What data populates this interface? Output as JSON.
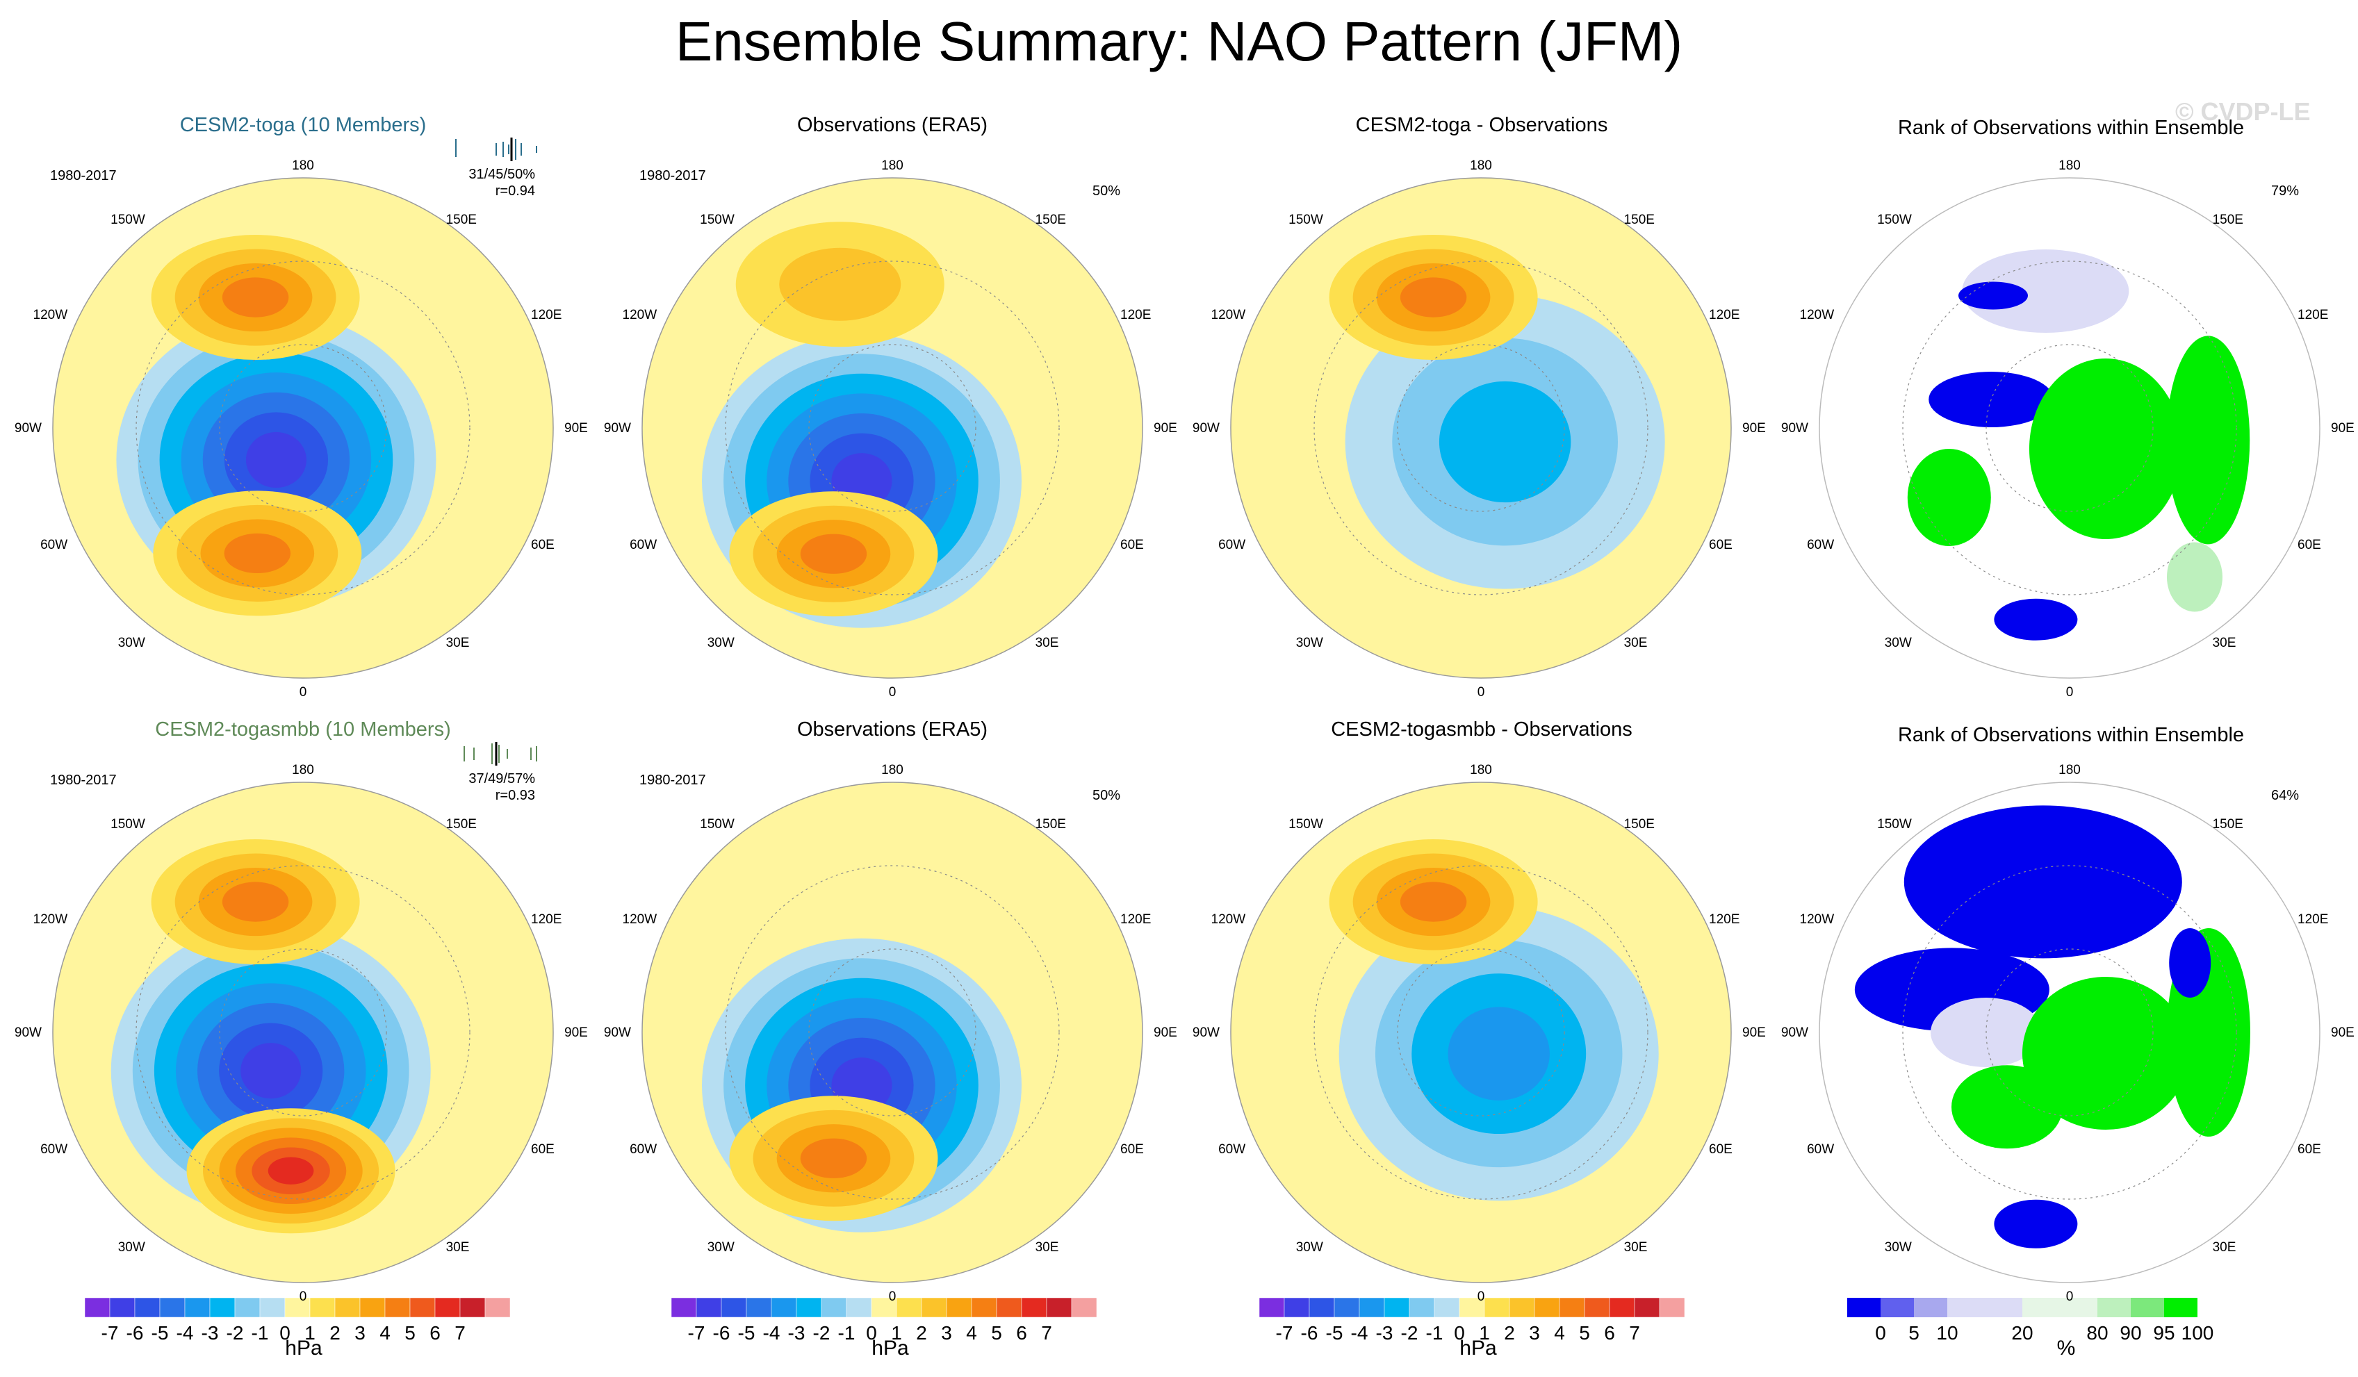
{
  "figure_title": "Ensemble Summary: NAO Pattern (JFM)",
  "watermark": "© CVDP-LE",
  "colors": {
    "model_title_1": "#2a6e8c",
    "model_title_2": "#5f8a58",
    "ice": [
      "#7b2ee0",
      "#3f3fe6",
      "#2d55e6",
      "#2a75e8",
      "#1a97ee",
      "#00b4f0",
      "#7fcaf0",
      "#b6def2"
    ],
    "fire": [
      "#fff59e",
      "#fde04e",
      "#fbc32a",
      "#f9a311",
      "#f57f13",
      "#ef5a1d",
      "#e42a20",
      "#c8202a",
      "#f4a0a0"
    ],
    "rank": [
      "#0000ee",
      "#6060ee",
      "#a8a8ee",
      "#dcdcf6",
      "#ffffff",
      "#e6f6e6",
      "#bdf0bd",
      "#7ce87c",
      "#00ee00"
    ]
  },
  "colorbar_hpa": {
    "labels": [
      "-7",
      "-6",
      "-5",
      "-4",
      "-3",
      "-2",
      "-1",
      "0",
      "1",
      "2",
      "3",
      "4",
      "5",
      "6",
      "7"
    ],
    "unit": "hPa"
  },
  "colorbar_rank": {
    "labels": [
      "0",
      "5",
      "10",
      "20",
      "80",
      "90",
      "95",
      "100"
    ],
    "unit": "%"
  },
  "longitude_labels": {
    "top": "180",
    "bottom": "0",
    "left_upper": "150W",
    "left_mid_upper": "120W",
    "left_mid": "90W",
    "left_mid_lower": "60W",
    "left_lower": "30W",
    "right_upper": "150E",
    "right_mid_upper": "120E",
    "right_mid": "90E",
    "right_mid_lower": "60E",
    "right_lower": "30E"
  },
  "chart_data": [
    {
      "type": "heatmap",
      "map": "polar stereographic, Northern Hemisphere",
      "title": "CESM2-toga (10 Members)",
      "period": "1980-2017",
      "stats": "31/45/50%",
      "pattern_corr": "r=0.94",
      "units": "hPa",
      "range": [
        -7,
        7
      ],
      "centers": [
        {
          "name": "Icelandic/Arctic low",
          "lat": 75,
          "lon": -40,
          "value": -6
        },
        {
          "name": "Atlantic subtropical high",
          "lat": 42,
          "lon": -20,
          "value": 3
        },
        {
          "name": "North Pacific high",
          "lat": 40,
          "lon": -160,
          "value": 3
        }
      ]
    },
    {
      "type": "heatmap",
      "map": "polar stereographic, Northern Hemisphere",
      "title": "Observations (ERA5)",
      "period": "1980-2017",
      "pct": "50%",
      "units": "hPa",
      "range": [
        -7,
        7
      ],
      "centers": [
        {
          "name": "Icelandic low",
          "lat": 68,
          "lon": -30,
          "value": -6
        },
        {
          "name": "Azores high",
          "lat": 40,
          "lon": -25,
          "value": 3
        },
        {
          "name": "North Pacific high",
          "lat": 35,
          "lon": -160,
          "value": 1
        }
      ]
    },
    {
      "type": "heatmap",
      "map": "polar stereographic, Northern Hemisphere",
      "title": "CESM2-toga - Observations",
      "units": "hPa",
      "range": [
        -7,
        7
      ],
      "centers": [
        {
          "name": "Arctic negative",
          "lat": 80,
          "lon": 60,
          "value": -2
        },
        {
          "name": "North Pacific positive",
          "lat": 40,
          "lon": -160,
          "value": 3
        }
      ]
    },
    {
      "type": "heatmap",
      "map": "polar stereographic, Northern Hemisphere",
      "title": "Rank of Observations within Ensemble",
      "pct": "79%",
      "units": "%",
      "classes": [
        0,
        5,
        10,
        20,
        80,
        90,
        95,
        100
      ]
    },
    {
      "type": "heatmap",
      "map": "polar stereographic, Northern Hemisphere",
      "title": "CESM2-togasmbb (10 Members)",
      "period": "1980-2017",
      "stats": "37/49/57%",
      "pattern_corr": "r=0.93",
      "units": "hPa",
      "range": [
        -7,
        7
      ],
      "centers": [
        {
          "name": "Icelandic/Arctic low",
          "lat": 72,
          "lon": -40,
          "value": -6
        },
        {
          "name": "Mediterranean high",
          "lat": 40,
          "lon": -5,
          "value": 5
        },
        {
          "name": "North Pacific high",
          "lat": 40,
          "lon": -160,
          "value": 3
        }
      ]
    },
    {
      "type": "heatmap",
      "map": "polar stereographic, Northern Hemisphere",
      "title": "Observations (ERA5)",
      "period": "1980-2017",
      "pct": "50%",
      "units": "hPa",
      "range": [
        -7,
        7
      ],
      "centers": [
        {
          "name": "Icelandic low",
          "lat": 68,
          "lon": -30,
          "value": -6
        },
        {
          "name": "Azores high",
          "lat": 40,
          "lon": -25,
          "value": 3
        }
      ]
    },
    {
      "type": "heatmap",
      "map": "polar stereographic, Northern Hemisphere",
      "title": "CESM2-togasmbb - Observations",
      "units": "hPa",
      "range": [
        -7,
        7
      ],
      "centers": [
        {
          "name": "Arctic negative",
          "lat": 80,
          "lon": 40,
          "value": -3
        },
        {
          "name": "North Pacific positive",
          "lat": 40,
          "lon": -160,
          "value": 3
        }
      ]
    },
    {
      "type": "heatmap",
      "map": "polar stereographic, Northern Hemisphere",
      "title": "Rank of Observations within Ensemble",
      "pct": "64%",
      "units": "%",
      "classes": [
        0,
        5,
        10,
        20,
        80,
        90,
        95,
        100
      ]
    }
  ]
}
